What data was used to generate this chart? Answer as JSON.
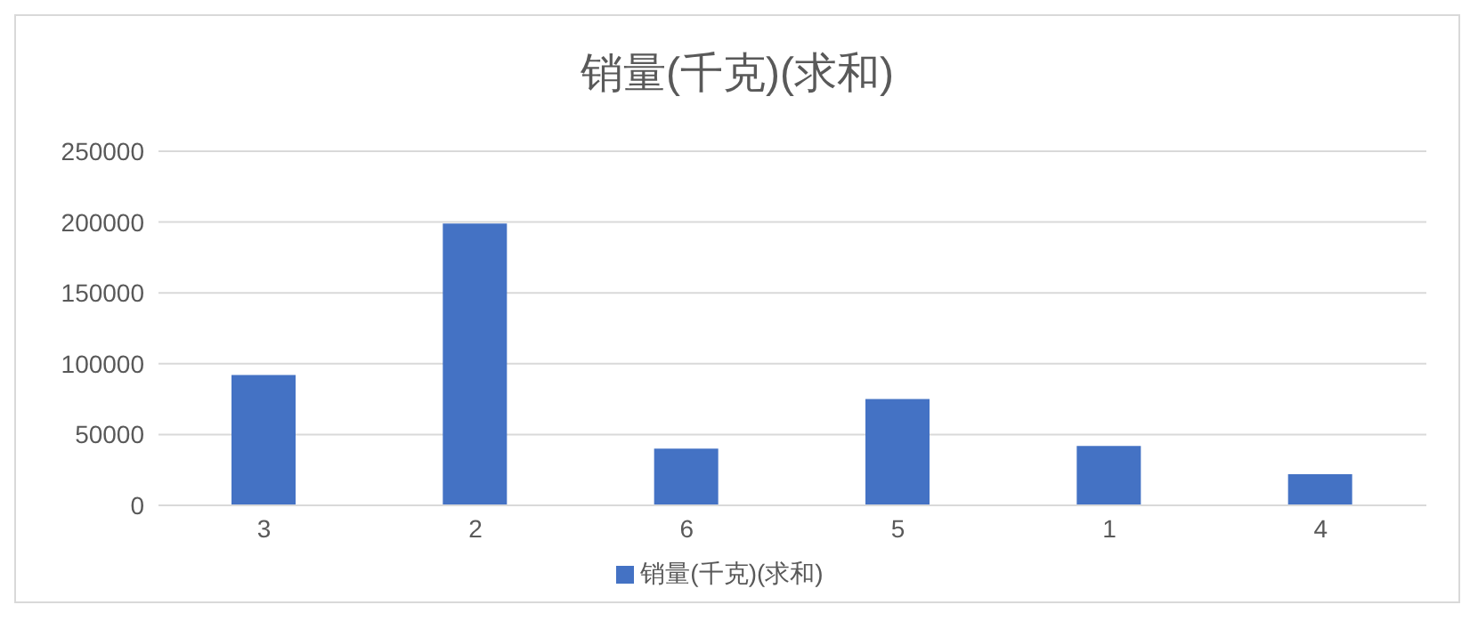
{
  "chart_data": {
    "type": "bar",
    "title": "销量(千克)(求和)",
    "categories": [
      "3",
      "2",
      "6",
      "5",
      "1",
      "4"
    ],
    "series": [
      {
        "name": "销量(千克)(求和)",
        "color": "#4472c4",
        "values": [
          92000,
          199000,
          40000,
          75000,
          42000,
          22000
        ]
      }
    ],
    "ylim": [
      0,
      250000
    ],
    "yticks": [
      0,
      50000,
      100000,
      150000,
      200000,
      250000
    ],
    "grid": "y",
    "legend": "bottom"
  }
}
